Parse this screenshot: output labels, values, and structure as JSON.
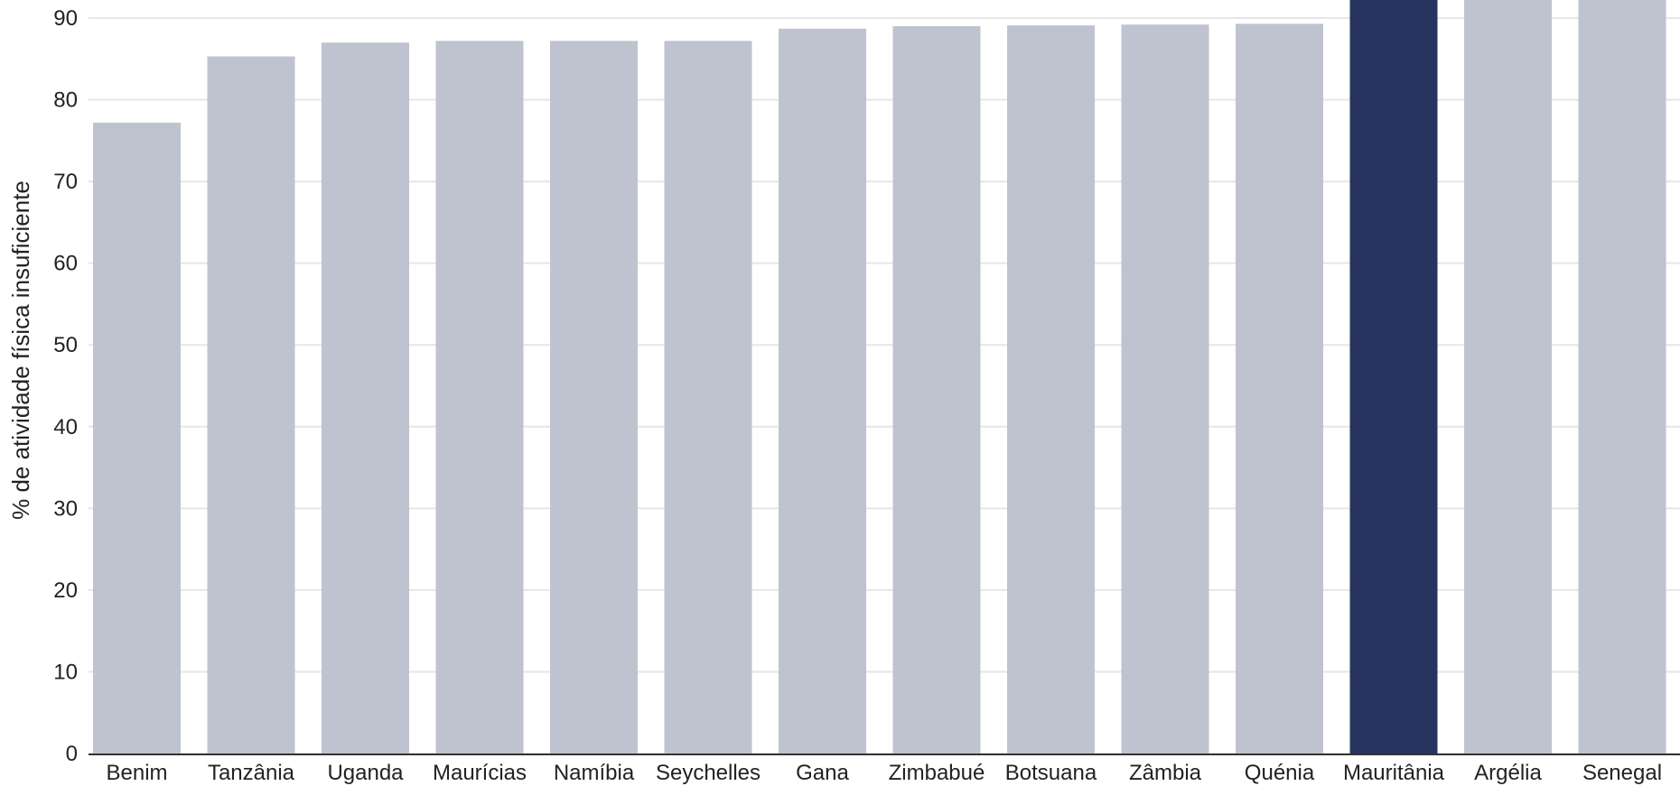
{
  "chart_data": {
    "type": "bar",
    "title": "",
    "xlabel": "",
    "ylabel": "% de atividade física insuficiente",
    "ylim": [
      0,
      92
    ],
    "yticks": [
      0,
      10,
      20,
      30,
      40,
      50,
      60,
      70,
      80,
      90
    ],
    "grid": true,
    "legend": "none",
    "categories": [
      "Benim",
      "Tanzânia",
      "Uganda",
      "Maurícias",
      "Namíbia",
      "Seychelles",
      "Gana",
      "Zimbabué",
      "Botsuana",
      "Zâmbia",
      "Quénia",
      "Mauritânia",
      "Argélia",
      "Senegal"
    ],
    "values": [
      77.2,
      85.3,
      87.0,
      87.2,
      87.2,
      87.2,
      88.7,
      89.0,
      89.1,
      89.2,
      89.3,
      94.0,
      94.0,
      94.0
    ],
    "highlight": "Mauritânia",
    "colors": {
      "bar": "#bfc3d0",
      "highlight": "#283460",
      "grid": "#e6e6e6",
      "axis": "#333333"
    }
  }
}
